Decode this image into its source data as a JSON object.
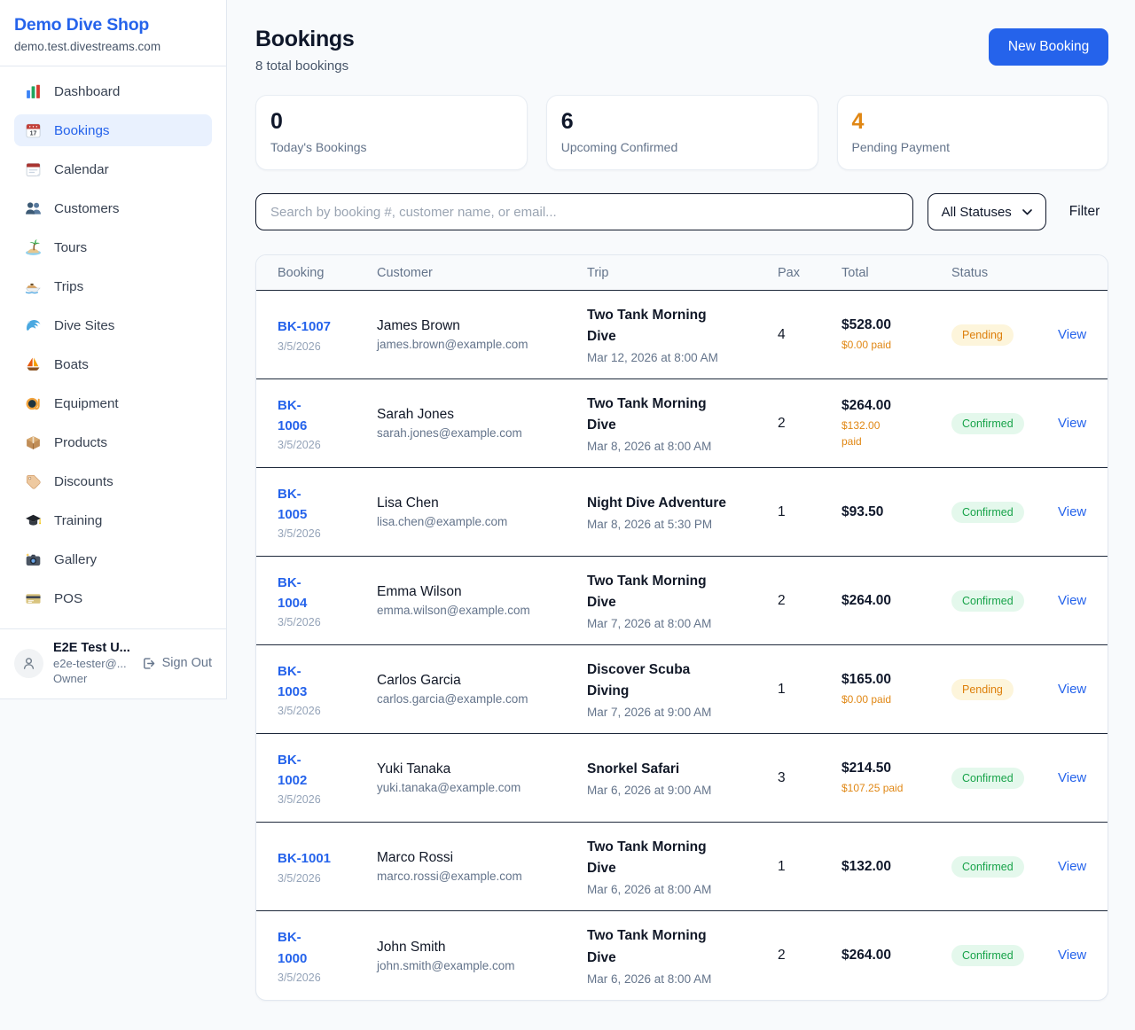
{
  "brand": {
    "name": "Demo Dive Shop",
    "domain": "demo.test.divestreams.com"
  },
  "sidebar": {
    "items": [
      {
        "label": "Dashboard",
        "icon": "bar-chart-icon",
        "active": false
      },
      {
        "label": "Bookings",
        "icon": "calendar-date-icon",
        "active": true
      },
      {
        "label": "Calendar",
        "icon": "calendar-icon",
        "active": false
      },
      {
        "label": "Customers",
        "icon": "users-icon",
        "active": false
      },
      {
        "label": "Tours",
        "icon": "island-icon",
        "active": false
      },
      {
        "label": "Trips",
        "icon": "speedboat-icon",
        "active": false
      },
      {
        "label": "Dive Sites",
        "icon": "wave-icon",
        "active": false
      },
      {
        "label": "Boats",
        "icon": "sailboat-icon",
        "active": false
      },
      {
        "label": "Equipment",
        "icon": "dive-mask-icon",
        "active": false
      },
      {
        "label": "Products",
        "icon": "package-icon",
        "active": false
      },
      {
        "label": "Discounts",
        "icon": "tag-icon",
        "active": false
      },
      {
        "label": "Training",
        "icon": "graduation-cap-icon",
        "active": false
      },
      {
        "label": "Gallery",
        "icon": "camera-icon",
        "active": false
      },
      {
        "label": "POS",
        "icon": "credit-card-icon",
        "active": false
      }
    ]
  },
  "user": {
    "name": "E2E Test U...",
    "email": "e2e-tester@...",
    "role": "Owner",
    "sign_out_label": "Sign Out"
  },
  "header": {
    "title": "Bookings",
    "subtitle": "8 total bookings",
    "new_booking_label": "New Booking"
  },
  "stats": [
    {
      "value": "0",
      "label": "Today's Bookings",
      "accent": "#0f172a"
    },
    {
      "value": "6",
      "label": "Upcoming Confirmed",
      "accent": "#0f172a"
    },
    {
      "value": "4",
      "label": "Pending Payment",
      "accent": "#e08714"
    }
  ],
  "filters": {
    "search_placeholder": "Search by booking #, customer name, or email...",
    "status_selected": "All Statuses",
    "filter_label": "Filter"
  },
  "table": {
    "columns": [
      "Booking",
      "Customer",
      "Trip",
      "Pax",
      "Total",
      "Status"
    ],
    "view_label": "View",
    "rows": [
      {
        "id_lines": [
          "BK-1007"
        ],
        "date": "3/5/2026",
        "customer": "James Brown",
        "email": "james.brown@example.com",
        "trip_lines": [
          "Two Tank Morning",
          "Dive"
        ],
        "trip_time": "Mar 12, 2026 at 8:00 AM",
        "pax": "4",
        "total": "$528.00",
        "paid_lines": [
          "$0.00 paid"
        ],
        "status": "Pending"
      },
      {
        "id_lines": [
          "BK-",
          "1006"
        ],
        "date": "3/5/2026",
        "customer": "Sarah Jones",
        "email": "sarah.jones@example.com",
        "trip_lines": [
          "Two Tank Morning",
          "Dive"
        ],
        "trip_time": "Mar 8, 2026 at 8:00 AM",
        "pax": "2",
        "total": "$264.00",
        "paid_lines": [
          "$132.00",
          "paid"
        ],
        "status": "Confirmed"
      },
      {
        "id_lines": [
          "BK-",
          "1005"
        ],
        "date": "3/5/2026",
        "customer": "Lisa Chen",
        "email": "lisa.chen@example.com",
        "trip_lines": [
          "Night Dive Adventure"
        ],
        "trip_time": "Mar 8, 2026 at 5:30 PM",
        "pax": "1",
        "total": "$93.50",
        "paid_lines": null,
        "status": "Confirmed"
      },
      {
        "id_lines": [
          "BK-",
          "1004"
        ],
        "date": "3/5/2026",
        "customer": "Emma Wilson",
        "email": "emma.wilson@example.com",
        "trip_lines": [
          "Two Tank Morning",
          "Dive"
        ],
        "trip_time": "Mar 7, 2026 at 8:00 AM",
        "pax": "2",
        "total": "$264.00",
        "paid_lines": null,
        "status": "Confirmed"
      },
      {
        "id_lines": [
          "BK-",
          "1003"
        ],
        "date": "3/5/2026",
        "customer": "Carlos Garcia",
        "email": "carlos.garcia@example.com",
        "trip_lines": [
          "Discover Scuba",
          "Diving"
        ],
        "trip_time": "Mar 7, 2026 at 9:00 AM",
        "pax": "1",
        "total": "$165.00",
        "paid_lines": [
          "$0.00 paid"
        ],
        "status": "Pending"
      },
      {
        "id_lines": [
          "BK-",
          "1002"
        ],
        "date": "3/5/2026",
        "customer": "Yuki Tanaka",
        "email": "yuki.tanaka@example.com",
        "trip_lines": [
          "Snorkel Safari"
        ],
        "trip_time": "Mar 6, 2026 at 9:00 AM",
        "pax": "3",
        "total": "$214.50",
        "paid_lines": [
          "$107.25 paid"
        ],
        "status": "Confirmed"
      },
      {
        "id_lines": [
          "BK-1001"
        ],
        "date": "3/5/2026",
        "customer": "Marco Rossi",
        "email": "marco.rossi@example.com",
        "trip_lines": [
          "Two Tank Morning",
          "Dive"
        ],
        "trip_time": "Mar 6, 2026 at 8:00 AM",
        "pax": "1",
        "total": "$132.00",
        "paid_lines": null,
        "status": "Confirmed"
      },
      {
        "id_lines": [
          "BK-",
          "1000"
        ],
        "date": "3/5/2026",
        "customer": "John Smith",
        "email": "john.smith@example.com",
        "trip_lines": [
          "Two Tank Morning",
          "Dive"
        ],
        "trip_time": "Mar 6, 2026 at 8:00 AM",
        "pax": "2",
        "total": "$264.00",
        "paid_lines": null,
        "status": "Confirmed"
      }
    ]
  },
  "colors": {
    "primary_blue": "#2563eb",
    "link_blue": "#2563eb",
    "pending_text": "#dd7f0b",
    "pending_bg": "#fdf5db",
    "confirmed_text": "#18a34a",
    "confirmed_bg": "#e4f8ec",
    "paid_orange": "#e08714",
    "page_bg": "#f8fafc",
    "dark_border": "#1e293b"
  }
}
